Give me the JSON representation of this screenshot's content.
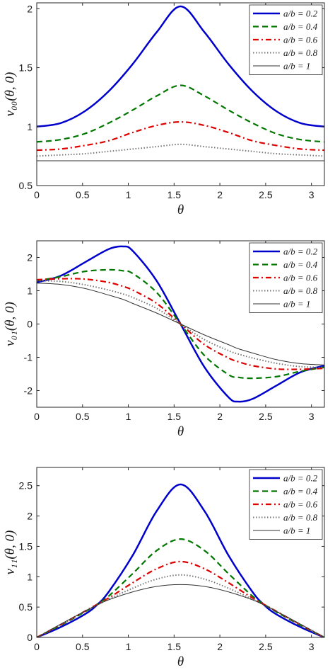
{
  "chart_data": [
    {
      "type": "line",
      "ylabel": "v₀₀(θ, 0)",
      "xlabel": "θ",
      "xlim": [
        0,
        3.1416
      ],
      "ylim": [
        0.5,
        2.05
      ],
      "xticks": [
        0,
        0.5,
        1,
        1.5,
        2,
        2.5,
        3
      ],
      "xtick_labels": [
        "0",
        "0.5",
        "1",
        "1.5",
        "2",
        "2.5",
        "3"
      ],
      "yticks": [
        0.5,
        1,
        1.5,
        2
      ],
      "ytick_labels": [
        "0.5",
        "1",
        "1.5",
        "2"
      ],
      "legend_position": "top-right",
      "grid": false,
      "x": [
        0,
        0.2618,
        0.5236,
        0.7854,
        1.0472,
        1.309,
        1.5708,
        1.8326,
        2.0944,
        2.3562,
        2.618,
        2.8798,
        3.1416
      ],
      "series": [
        {
          "name": "a/b = 0.2",
          "color": "#0000cc",
          "dash": "solid",
          "width": 2.5,
          "values": [
            1.0,
            1.03,
            1.13,
            1.3,
            1.53,
            1.8,
            2.02,
            1.8,
            1.53,
            1.3,
            1.13,
            1.03,
            1.0
          ]
        },
        {
          "name": "a/b = 0.4",
          "color": "#007700",
          "dash": "dashed",
          "width": 2.2,
          "values": [
            0.87,
            0.89,
            0.94,
            1.03,
            1.14,
            1.26,
            1.35,
            1.26,
            1.14,
            1.03,
            0.94,
            0.89,
            0.87
          ]
        },
        {
          "name": "a/b = 0.6",
          "color": "#dd0000",
          "dash": "dashdot",
          "width": 2.2,
          "values": [
            0.8,
            0.81,
            0.84,
            0.88,
            0.95,
            1.01,
            1.04,
            1.01,
            0.95,
            0.88,
            0.84,
            0.81,
            0.8
          ]
        },
        {
          "name": "a/b = 0.8",
          "color": "#777777",
          "dash": "dotted",
          "width": 2.0,
          "values": [
            0.75,
            0.76,
            0.77,
            0.79,
            0.81,
            0.83,
            0.85,
            0.83,
            0.81,
            0.79,
            0.77,
            0.76,
            0.75
          ]
        },
        {
          "name": "a/b = 1",
          "color": "#333333",
          "dash": "solid",
          "width": 1.0,
          "values": [
            0.71,
            0.71,
            0.71,
            0.71,
            0.71,
            0.71,
            0.71,
            0.71,
            0.71,
            0.71,
            0.71,
            0.71,
            0.71
          ]
        }
      ]
    },
    {
      "type": "line",
      "ylabel": "v₀₁(θ, 0)",
      "xlabel": "θ",
      "xlim": [
        0,
        3.1416
      ],
      "ylim": [
        -2.5,
        2.5
      ],
      "xticks": [
        0,
        0.5,
        1,
        1.5,
        2,
        2.5,
        3
      ],
      "xtick_labels": [
        "0",
        "0.5",
        "1",
        "1.5",
        "2",
        "2.5",
        "3"
      ],
      "yticks": [
        -2,
        -1,
        0,
        1,
        2
      ],
      "ytick_labels": [
        "-2",
        "-1",
        "0",
        "1",
        "2"
      ],
      "legend_position": "top-right",
      "grid": false,
      "x": [
        0,
        0.2618,
        0.5236,
        0.7854,
        0.9425,
        1.0472,
        1.309,
        1.5708,
        1.8326,
        2.0944,
        2.1991,
        2.3562,
        2.618,
        2.8798,
        3.1416
      ],
      "series": [
        {
          "name": "a/b = 0.2",
          "color": "#0000cc",
          "dash": "solid",
          "width": 2.5,
          "values": [
            1.25,
            1.45,
            1.85,
            2.25,
            2.33,
            2.2,
            1.3,
            0.0,
            -1.3,
            -2.2,
            -2.33,
            -2.25,
            -1.85,
            -1.45,
            -1.25
          ]
        },
        {
          "name": "a/b = 0.4",
          "color": "#007700",
          "dash": "dashed",
          "width": 2.2,
          "values": [
            1.3,
            1.42,
            1.58,
            1.63,
            1.6,
            1.52,
            0.95,
            0.0,
            -0.95,
            -1.52,
            -1.6,
            -1.63,
            -1.58,
            -1.42,
            -1.3
          ]
        },
        {
          "name": "a/b = 0.6",
          "color": "#dd0000",
          "dash": "dashdot",
          "width": 2.2,
          "values": [
            1.33,
            1.36,
            1.35,
            1.25,
            1.13,
            1.02,
            0.62,
            0.0,
            -0.62,
            -1.02,
            -1.13,
            -1.25,
            -1.35,
            -1.36,
            -1.33
          ]
        },
        {
          "name": "a/b = 0.8",
          "color": "#777777",
          "dash": "dotted",
          "width": 2.0,
          "values": [
            1.3,
            1.28,
            1.18,
            1.02,
            0.9,
            0.8,
            0.47,
            0.0,
            -0.47,
            -0.8,
            -0.9,
            -1.02,
            -1.18,
            -1.28,
            -1.3
          ]
        },
        {
          "name": "a/b = 1",
          "color": "#333333",
          "dash": "solid",
          "width": 1.0,
          "values": [
            1.23,
            1.19,
            1.07,
            0.87,
            0.74,
            0.62,
            0.33,
            0.0,
            -0.33,
            -0.62,
            -0.74,
            -0.87,
            -1.07,
            -1.19,
            -1.23
          ]
        }
      ]
    },
    {
      "type": "line",
      "ylabel": "v₁₁(θ, 0)",
      "xlabel": "θ",
      "xlim": [
        0,
        3.1416
      ],
      "ylim": [
        0,
        2.8
      ],
      "xticks": [
        0,
        0.5,
        1,
        1.5,
        2,
        2.5,
        3
      ],
      "xtick_labels": [
        "0",
        "0.5",
        "1",
        "1.5",
        "2",
        "2.5",
        "3"
      ],
      "yticks": [
        0,
        0.5,
        1,
        1.5,
        2,
        2.5
      ],
      "ytick_labels": [
        "0",
        "0.5",
        "1",
        "1.5",
        "2",
        "2.5"
      ],
      "legend_position": "top-right",
      "grid": false,
      "x": [
        0,
        0.2618,
        0.5236,
        0.6545,
        0.7854,
        1.0472,
        1.309,
        1.5708,
        1.8326,
        2.0944,
        2.3562,
        2.4871,
        2.618,
        2.8798,
        3.1416
      ],
      "series": [
        {
          "name": "a/b = 0.2",
          "color": "#0000cc",
          "dash": "solid",
          "width": 2.5,
          "values": [
            0.0,
            0.17,
            0.38,
            0.53,
            0.75,
            1.35,
            2.08,
            2.52,
            2.08,
            1.35,
            0.75,
            0.53,
            0.38,
            0.17,
            0.0
          ]
        },
        {
          "name": "a/b = 0.4",
          "color": "#007700",
          "dash": "dashed",
          "width": 2.2,
          "values": [
            0.0,
            0.2,
            0.42,
            0.54,
            0.68,
            1.05,
            1.43,
            1.62,
            1.43,
            1.05,
            0.68,
            0.54,
            0.42,
            0.2,
            0.0
          ]
        },
        {
          "name": "a/b = 0.6",
          "color": "#dd0000",
          "dash": "dashdot",
          "width": 2.2,
          "values": [
            0.0,
            0.21,
            0.43,
            0.54,
            0.65,
            0.9,
            1.13,
            1.25,
            1.13,
            0.9,
            0.65,
            0.54,
            0.43,
            0.21,
            0.0
          ]
        },
        {
          "name": "a/b = 0.8",
          "color": "#777777",
          "dash": "dotted",
          "width": 2.0,
          "values": [
            0.0,
            0.21,
            0.43,
            0.53,
            0.63,
            0.81,
            0.96,
            1.03,
            0.96,
            0.81,
            0.63,
            0.53,
            0.43,
            0.21,
            0.0
          ]
        },
        {
          "name": "a/b = 1",
          "color": "#333333",
          "dash": "solid",
          "width": 1.0,
          "values": [
            0.0,
            0.22,
            0.43,
            0.53,
            0.62,
            0.75,
            0.84,
            0.87,
            0.84,
            0.75,
            0.62,
            0.53,
            0.43,
            0.22,
            0.0
          ]
        }
      ]
    }
  ]
}
